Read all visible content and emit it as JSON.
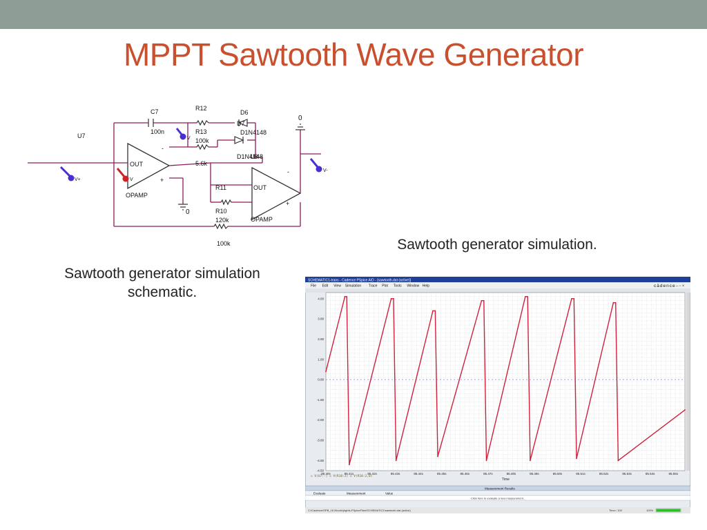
{
  "slide": {
    "title": "MPPT Sawtooth Wave Generator",
    "caption_schematic_line1": "Sawtooth generator simulation",
    "caption_schematic_line2": "schematic.",
    "caption_simulation": "Sawtooth generator simulation."
  },
  "schematic": {
    "labels": {
      "u7": "U7",
      "c7": "C7",
      "c7_val": "100n",
      "r12": "R12",
      "r13": "R13",
      "r13_val": "100k",
      "d6": "D6",
      "d7": "D7",
      "d6_part": "D1N4148",
      "d7_part": "D1N4148",
      "u8": "U8",
      "r_56k": "5.6k",
      "r11": "R11",
      "r10": "R10",
      "r10_val": "120k",
      "r11_val": "100k",
      "out1": "OUT",
      "out2": "OUT",
      "opamp1": "OPAMP",
      "opamp2": "OPAMP",
      "minus1": "-",
      "plus1": "+",
      "minus2": "-",
      "plus2": "+",
      "gnd0_a": "0",
      "gnd0_b": "0",
      "probe_vplus": "V+",
      "probe_v1": "V",
      "probe_v2": "V",
      "probe_vminus": "V-"
    },
    "colors": {
      "wire": "#8b1a5c",
      "probe_blue": "#4a2fd0",
      "probe_red": "#d0202a",
      "component": "#333333"
    }
  },
  "simulation_window": {
    "title_text": "SCHEMATIC1-trans - Cadence PSpice A/D - [sawtooth.dat (active)]",
    "menu": [
      "File",
      "Edit",
      "View",
      "Simulation",
      "Trace",
      "Plot",
      "Tools",
      "Window",
      "Help"
    ],
    "brand": "cādence",
    "measurement_results_header": "Measurement Results",
    "measurement_columns": [
      "Evaluate",
      "Measurement",
      "Value"
    ],
    "measurement_hint": "Click here to evaluate a new measurement...",
    "status_path": "C:\\Cadence\\SPB_16.3\\tools\\jhghfs-PSpiceFiles\\SCHEMATIC1\\sawtooth.dat (active)",
    "status_time": "Time= 100",
    "status_percent": "100%",
    "legend_text": "◇ V(U7:-)   ◇ V(R10:2)   ◇ V(R10:2,0)",
    "x_axis_label": "Time",
    "colors": {
      "trace": "#d0203a",
      "grid": "#9aa0a0",
      "window_blue": "#1e3f9a",
      "progress": "#2bc02b"
    }
  },
  "chart_data": {
    "type": "line",
    "title": "",
    "xlabel": "Time",
    "ylabel": "",
    "ylim": [
      -4.5,
      4.3
    ],
    "yticks": [
      "4.00",
      "3.00",
      "2.00",
      "1.00",
      "0.00",
      "-1.00",
      "-2.00",
      "-3.00",
      "-4.00",
      "-4.50"
    ],
    "ytick_values": [
      4,
      3,
      2,
      1,
      0,
      -1,
      -2,
      -3,
      -4,
      -4.5
    ],
    "xticks": [
      "85.40s",
      "85.41s",
      "85.42s",
      "85.43s",
      "85.44s",
      "85.45s",
      "85.46s",
      "85.47s",
      "85.48s",
      "85.49s",
      "85.50s",
      "85.51s",
      "85.52s",
      "85.53s",
      "85.54s",
      "85.55s"
    ],
    "xlim": [
      85.4,
      85.555
    ],
    "series": [
      {
        "name": "V(U7:-)",
        "x": [
          85.4,
          85.4082,
          85.409,
          85.4101,
          85.4282,
          85.4292,
          85.4303,
          85.4462,
          85.4472,
          85.4483,
          85.4672,
          85.4682,
          85.4693,
          85.4861,
          85.4871,
          85.4882,
          85.5061,
          85.5071,
          85.5082,
          85.5241,
          85.5251,
          85.5262,
          85.555
        ],
        "y": [
          0.4,
          4.1,
          4.1,
          -4.2,
          4.0,
          4.0,
          -4.0,
          3.4,
          3.4,
          -3.8,
          3.9,
          3.9,
          -4.0,
          4.1,
          4.1,
          -4.0,
          4.0,
          4.0,
          -3.9,
          3.8,
          3.8,
          -4.0,
          -1.5
        ]
      }
    ],
    "zero_line_value": 0,
    "grid": true
  }
}
